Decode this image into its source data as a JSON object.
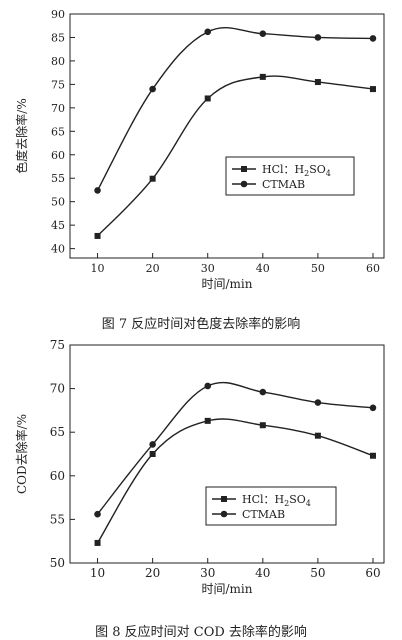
{
  "chart_data": [
    {
      "type": "line",
      "caption": "图 7   反应时间对色度去除率的影响",
      "xlabel": "时间/min",
      "ylabel": "色度去除率/%",
      "x": [
        10,
        20,
        30,
        40,
        50,
        60
      ],
      "xlim": [
        5,
        62
      ],
      "ylim": [
        38,
        90
      ],
      "xticks": [
        10,
        20,
        30,
        40,
        50,
        60
      ],
      "yticks": [
        40,
        45,
        50,
        55,
        60,
        65,
        70,
        75,
        80,
        85,
        90
      ],
      "legend_position": "center-right",
      "series": [
        {
          "name": "HCl:H2SO4",
          "name_prefix": "HCl：H",
          "name_sub1": "2",
          "name_mid": "SO",
          "name_sub2": "4",
          "marker": "square",
          "values": [
            42.7,
            54.9,
            72.0,
            76.6,
            75.5,
            74.0
          ]
        },
        {
          "name": "CTMAB",
          "marker": "circle",
          "values": [
            52.4,
            74.0,
            86.2,
            85.8,
            85.0,
            84.8
          ]
        }
      ]
    },
    {
      "type": "line",
      "caption": "图 8   反应时间对 COD 去除率的影响",
      "xlabel": "时间/min",
      "ylabel": "COD去除率/%",
      "x": [
        10,
        20,
        30,
        40,
        50,
        60
      ],
      "xlim": [
        5,
        62
      ],
      "ylim": [
        50,
        75
      ],
      "xticks": [
        10,
        20,
        30,
        40,
        50,
        60
      ],
      "yticks": [
        50,
        55,
        60,
        65,
        70,
        75
      ],
      "legend_position": "lower-right",
      "series": [
        {
          "name": "HCl:H2SO4",
          "name_prefix": "HCl：H",
          "name_sub1": "2",
          "name_mid": "SO",
          "name_sub2": "4",
          "marker": "square",
          "values": [
            52.3,
            62.5,
            66.3,
            65.8,
            64.6,
            62.3
          ]
        },
        {
          "name": "CTMAB",
          "marker": "circle",
          "values": [
            55.6,
            63.6,
            70.3,
            69.6,
            68.4,
            67.8
          ]
        }
      ]
    }
  ]
}
